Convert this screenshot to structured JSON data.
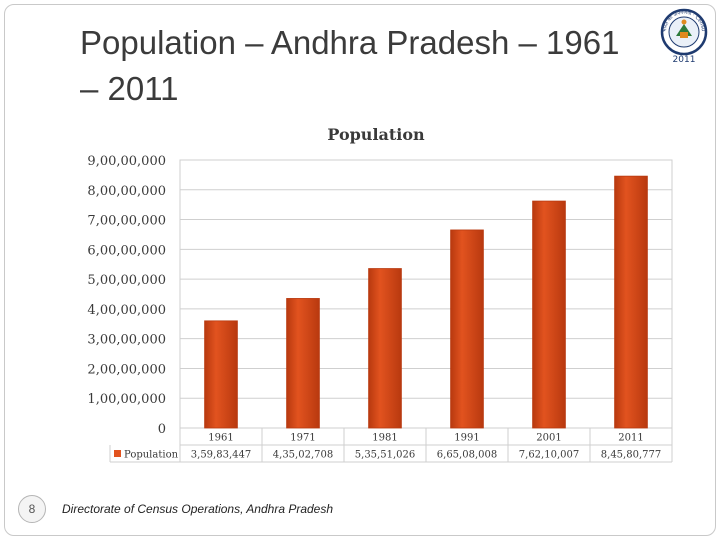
{
  "slide": {
    "title": "Population – Andhra Pradesh – 1961 – 2011",
    "page_number": "8",
    "footer": "Directorate of Census Operations, Andhra Pradesh",
    "logo": {
      "ring_text": "भारत की जनगणना · Census of India",
      "year": "2011"
    }
  },
  "colors": {
    "bar": "#e2531f",
    "bar_dark": "#b8390f",
    "grid": "#cfcfcf",
    "text": "#3a3a3a"
  },
  "chart_data": {
    "type": "bar",
    "title": "Population",
    "categories": [
      "1961",
      "1971",
      "1981",
      "1991",
      "2001",
      "2011"
    ],
    "series": [
      {
        "name": "Population",
        "values": [
          35983447,
          43502708,
          53551026,
          66508008,
          76210007,
          84580777
        ],
        "value_labels": [
          "3,59,83,447",
          "4,35,02,708",
          "5,35,51,026",
          "6,65,08,008",
          "7,62,10,007",
          "8,45,80,777"
        ]
      }
    ],
    "ylim": [
      0,
      90000000
    ],
    "y_ticks": [
      0,
      10000000,
      20000000,
      30000000,
      40000000,
      50000000,
      60000000,
      70000000,
      80000000,
      90000000
    ],
    "y_tick_labels": [
      "0",
      "1,00,00,000",
      "2,00,00,000",
      "3,00,00,000",
      "4,00,00,000",
      "5,00,00,000",
      "6,00,00,000",
      "7,00,00,000",
      "8,00,00,000",
      "9,00,00,000"
    ],
    "xlabel": "",
    "ylabel": "",
    "data_table": true,
    "grid": true
  }
}
